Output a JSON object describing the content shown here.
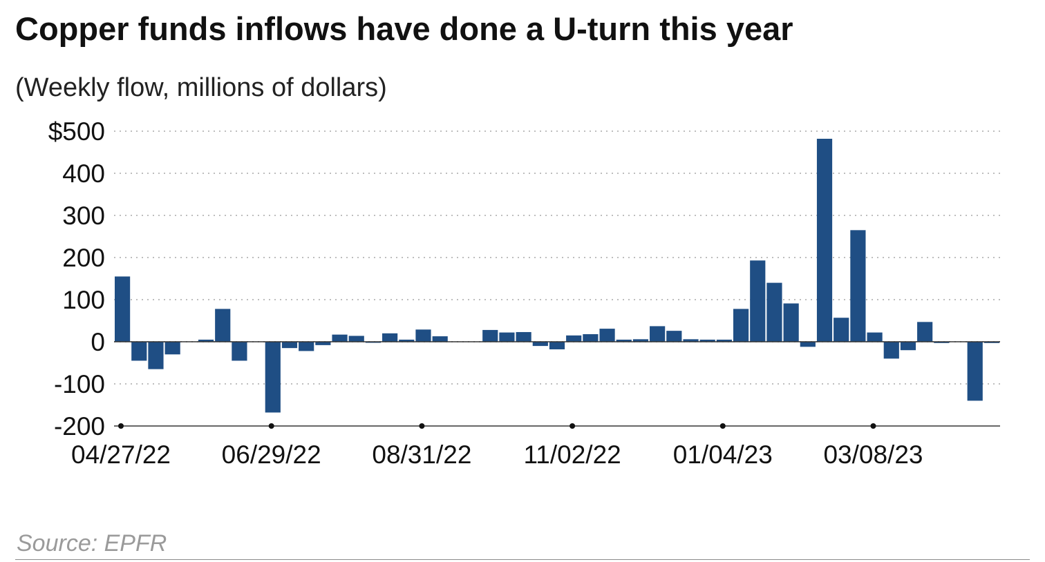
{
  "title": "Copper funds inflows have done a U-turn this year",
  "subtitle": "(Weekly flow, millions of dollars)",
  "source": "Source: EPFR",
  "colors": {
    "bar": "#1f4e84",
    "grid": "#bdbdbd",
    "axis": "#333333"
  },
  "chart_data": {
    "type": "bar",
    "title": "Copper funds inflows have done a U-turn this year",
    "subtitle": "(Weekly flow, millions of dollars)",
    "xlabel": "",
    "ylabel": "",
    "ylim": [
      -200,
      500
    ],
    "yticks": [
      500,
      400,
      300,
      200,
      100,
      0,
      -100,
      -200
    ],
    "ytick_labels": [
      "$500",
      "400",
      "300",
      "200",
      "100",
      "0",
      "-100",
      "-200"
    ],
    "xtick_labels": [
      "04/27/22",
      "06/29/22",
      "08/31/22",
      "11/02/22",
      "01/04/23",
      "03/08/23"
    ],
    "xtick_index": [
      0,
      9,
      18,
      27,
      36,
      45
    ],
    "grid": true,
    "legend": "none",
    "series": [
      {
        "values": [
          155,
          -45,
          -65,
          -30,
          0,
          5,
          78,
          -45,
          0,
          -168,
          -15,
          -22,
          -8,
          17,
          14,
          -2,
          20,
          5,
          29,
          13,
          0,
          0,
          28,
          22,
          23,
          -10,
          -18,
          15,
          18,
          31,
          5,
          6,
          37,
          26,
          6,
          5,
          5,
          78,
          193,
          140,
          91,
          -12,
          482,
          57,
          265,
          22,
          -40,
          -20,
          47,
          -3,
          0,
          -140,
          -3
        ]
      }
    ]
  }
}
